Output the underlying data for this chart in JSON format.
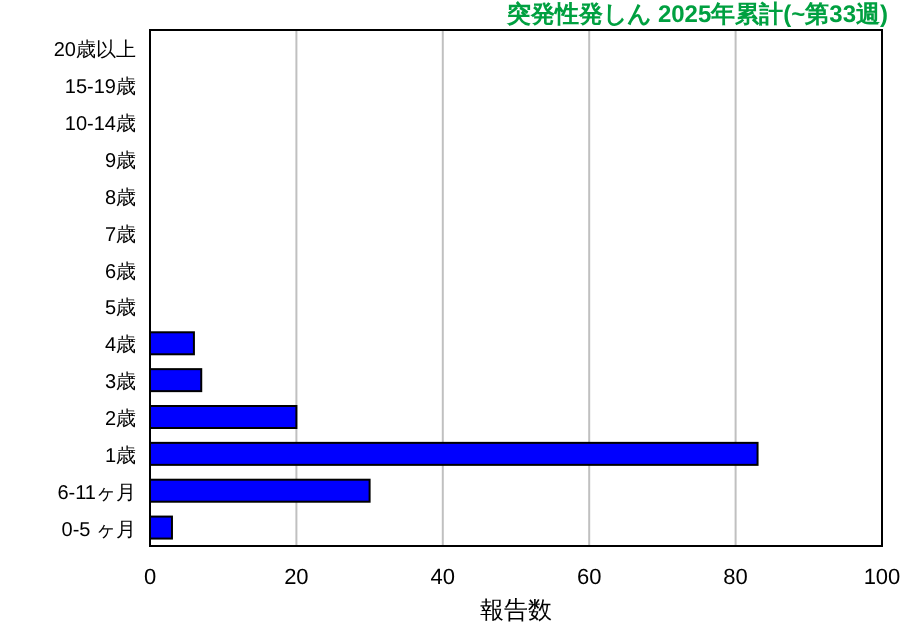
{
  "chart_data": {
    "type": "bar",
    "orientation": "horizontal",
    "title": "突発性発しん 2025年累計(~第33週)",
    "xlabel": "報告数",
    "categories": [
      "20歳以上",
      "15-19歳",
      "10-14歳",
      "9歳",
      "8歳",
      "7歳",
      "6歳",
      "5歳",
      "4歳",
      "3歳",
      "2歳",
      "1歳",
      "6-11ヶ月",
      "0-5 ヶ月"
    ],
    "values": [
      0,
      0,
      0,
      0,
      0,
      0,
      0,
      0,
      6,
      7,
      20,
      83,
      30,
      3
    ],
    "color": "#0000ff",
    "xlim": [
      0,
      100
    ],
    "xticks": [
      0,
      20,
      40,
      60,
      80,
      100
    ],
    "grid": "x"
  }
}
